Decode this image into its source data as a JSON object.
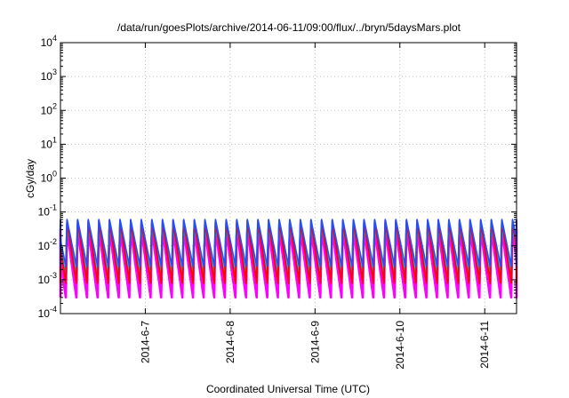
{
  "chart_data": {
    "type": "area",
    "title": "/data/run/goesPlots/archive/2014-06-11/09:00/flux/../bryn/5daysMars.plot",
    "xlabel": "Coordinated Universal Time (UTC)",
    "ylabel": "cGy/day",
    "yscale": "log",
    "ylim": [
      0.0001,
      10000
    ],
    "xlim": [
      "2014-06-06T00:00",
      "2014-06-11T09:00"
    ],
    "grid": true,
    "y_ticks": [
      {
        "base": "10",
        "exp": "-4"
      },
      {
        "base": "10",
        "exp": "-3"
      },
      {
        "base": "10",
        "exp": "-2"
      },
      {
        "base": "10",
        "exp": "-1"
      },
      {
        "base": "10",
        "exp": "0"
      },
      {
        "base": "10",
        "exp": "1"
      },
      {
        "base": "10",
        "exp": "2"
      },
      {
        "base": "10",
        "exp": "3"
      },
      {
        "base": "10",
        "exp": "4"
      }
    ],
    "x_ticks": [
      {
        "label": "2014-6-7",
        "date": "2014-06-07T00:00"
      },
      {
        "label": "2014-6-8",
        "date": "2014-06-08T00:00"
      },
      {
        "label": "2014-6-9",
        "date": "2014-06-09T00:00"
      },
      {
        "label": "2014-6-10",
        "date": "2014-06-10T00:00"
      },
      {
        "label": "2014-6-11",
        "date": "2014-06-11T00:00"
      }
    ],
    "cycle_hours": 3,
    "series": [
      {
        "color": "#ff00ff",
        "min": 0.0003,
        "max": 0.03
      },
      {
        "color": "#00c8c8",
        "min": 0.0012,
        "max": 0.045
      },
      {
        "color": "#ff0000",
        "min": 0.0008,
        "max": 0.055
      },
      {
        "color": "#2050ff",
        "min": 0.0025,
        "max": 0.06
      }
    ]
  }
}
